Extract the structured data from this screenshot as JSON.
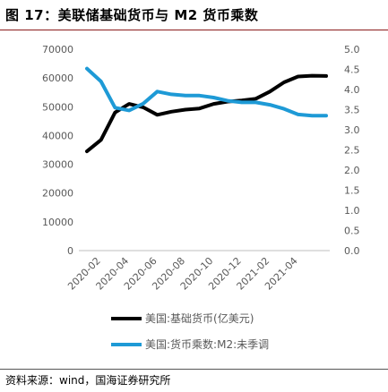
{
  "figure": {
    "title": "图 17：美联储基础货币与 M2 货币乘数",
    "source": "资料来源：wind，国海证券研究所"
  },
  "chart_data": {
    "type": "line",
    "title": "",
    "x": [
      "2020-01",
      "2020-02",
      "2020-03",
      "2020-04",
      "2020-05",
      "2020-06",
      "2020-07",
      "2020-08",
      "2020-09",
      "2020-10",
      "2020-11",
      "2020-12",
      "2021-01",
      "2021-02",
      "2021-03",
      "2021-04",
      "2021-05",
      "2021-06"
    ],
    "x_tick_labels": [
      "2020-02",
      "2020-04",
      "2020-06",
      "2020-08",
      "2020-10",
      "2020-12",
      "2021-02",
      "2021-04"
    ],
    "left_axis": {
      "ylim": [
        0,
        70000
      ],
      "ticks": [
        0,
        10000,
        20000,
        30000,
        40000,
        50000,
        60000,
        70000
      ]
    },
    "right_axis": {
      "ylim": [
        0.0,
        5.0
      ],
      "ticks": [
        "0.0",
        "0.5",
        "1.0",
        "1.5",
        "2.0",
        "2.5",
        "3.0",
        "3.5",
        "4.0",
        "4.5",
        "5.0"
      ]
    },
    "series": [
      {
        "name": "美国:基础货币(亿美元)",
        "axis": "left",
        "color": "#000000",
        "values": [
          34500,
          38500,
          48000,
          51000,
          49800,
          47200,
          48300,
          49000,
          49400,
          51000,
          51800,
          52200,
          52800,
          55300,
          58500,
          60500,
          60800,
          60700
        ]
      },
      {
        "name": "美国:货币乘数:M2:未季调",
        "axis": "right",
        "color": "#1e9ad6",
        "values": [
          4.52,
          4.2,
          3.55,
          3.48,
          3.65,
          3.95,
          3.88,
          3.85,
          3.85,
          3.8,
          3.72,
          3.68,
          3.68,
          3.62,
          3.52,
          3.38,
          3.35,
          3.35
        ]
      }
    ],
    "legend_position": "bottom",
    "grid": false
  }
}
